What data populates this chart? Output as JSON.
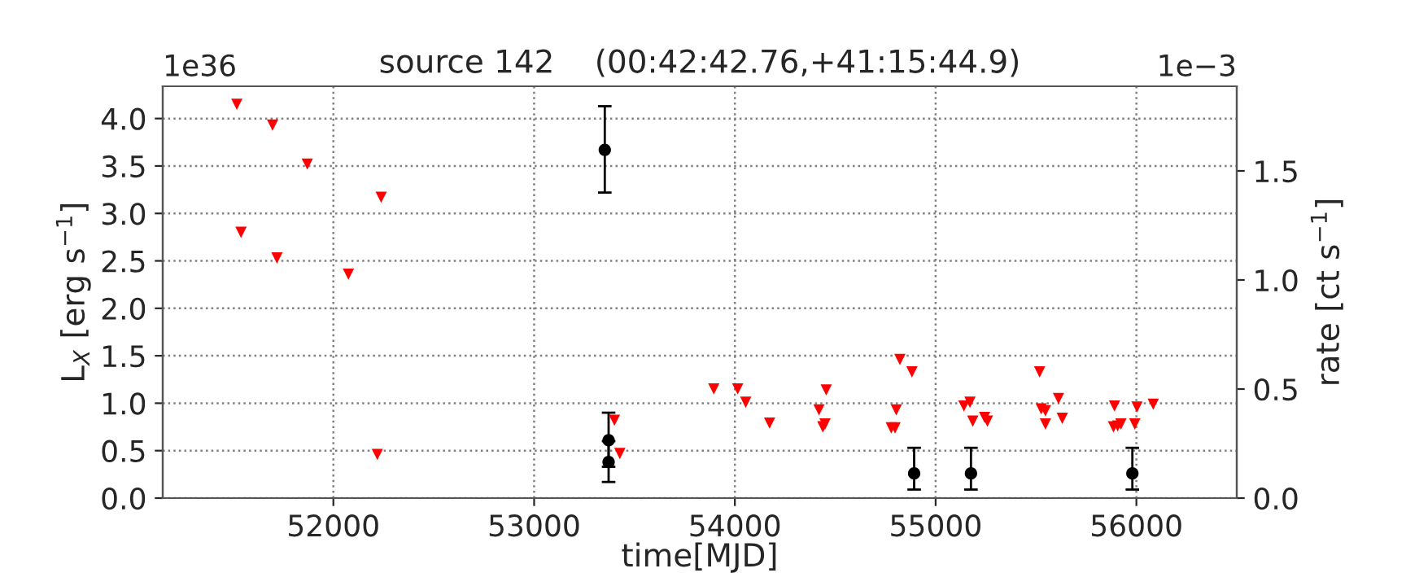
{
  "chart_data": {
    "type": "scatter",
    "title": "source 142    (00:42:42.76,+41:15:44.9)",
    "xlabel": "time[MJD]",
    "ylabel": "L$_{X}$ [erg s$^{−1}$]",
    "y2label": "rate [ct s$^{−1}$]",
    "annotations": [
      "1e36",
      "1e−3"
    ],
    "series": [
      {
        "color": "#ff0000",
        "marker": "triangle",
        "x": [
          51519,
          51697,
          51870,
          52238,
          51540,
          51719,
          52075,
          52219,
          53400,
          53427,
          53895,
          54014,
          54054,
          54173,
          54419,
          54438,
          54449,
          54455,
          54804,
          54798,
          54779,
          54822,
          54882,
          55141,
          55171,
          55185,
          55244,
          55258,
          55518,
          55526,
          55547,
          55547,
          55612,
          55631,
          55886,
          55907,
          55923,
          55891,
          55992,
          56003,
          56084
        ],
        "values": [
          4.15,
          3.93,
          3.52,
          3.17,
          2.8,
          2.53,
          2.36,
          0.46,
          0.82,
          0.47,
          1.15,
          1.15,
          1.01,
          0.79,
          0.93,
          0.75,
          0.78,
          1.14,
          0.93,
          0.74,
          0.74,
          1.46,
          1.33,
          0.97,
          1.01,
          0.81,
          0.85,
          0.81,
          1.33,
          0.94,
          0.92,
          0.78,
          1.05,
          0.84,
          0.75,
          0.76,
          0.78,
          0.97,
          0.78,
          0.96,
          0.99
        ]
      },
      {
        "color": "#000000",
        "marker": "circle",
        "x": [
          53352,
          53371,
          53371,
          54893,
          55176,
          55980
        ],
        "values": [
          3.67,
          0.61,
          0.38,
          0.26,
          0.26,
          0.26
        ],
        "errors": [
          [
            3.22,
            4.13
          ],
          [
            0.33,
            0.9
          ],
          [
            0.17,
            0.6
          ],
          [
            0.09,
            0.53
          ],
          [
            0.09,
            0.53
          ],
          [
            0.09,
            0.53
          ]
        ]
      }
    ],
    "xlim": [
      51150,
      56500
    ],
    "xticks": [
      52000,
      53000,
      54000,
      55000,
      56000
    ],
    "ylim": [
      0,
      4.34
    ],
    "yticks": [
      {
        "value": 0,
        "label": "0.0"
      },
      {
        "value": 0.5,
        "label": "0.5"
      },
      {
        "value": 1.0,
        "label": "1.0"
      },
      {
        "value": 1.5,
        "label": "1.5"
      },
      {
        "value": 2.0,
        "label": "2.0"
      },
      {
        "value": 2.5,
        "label": "2.5"
      },
      {
        "value": 3.0,
        "label": "3.0"
      },
      {
        "value": 3.5,
        "label": "3.5"
      },
      {
        "value": 4.0,
        "label": "4.0"
      }
    ],
    "y2lim": [
      0,
      1.888
    ],
    "y2ticks": [
      {
        "value": 0,
        "label": "0.0"
      },
      {
        "value": 0.5,
        "label": "0.5"
      },
      {
        "value": 1.0,
        "label": "1.0"
      },
      {
        "value": 1.5,
        "label": "1.5"
      }
    ],
    "grid": true
  }
}
